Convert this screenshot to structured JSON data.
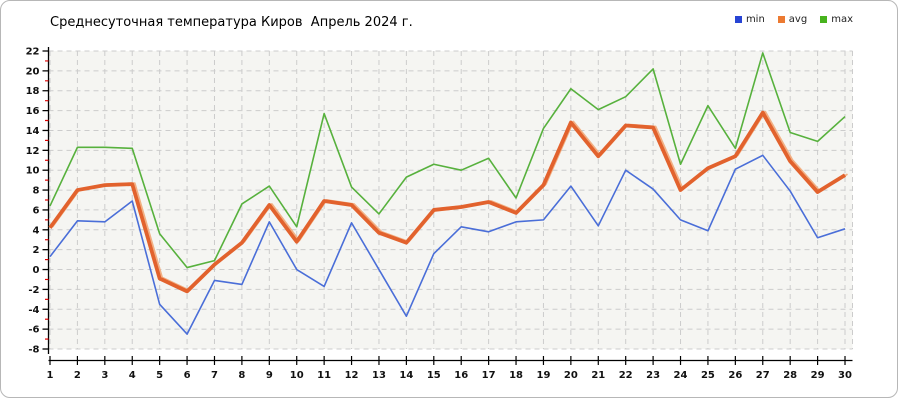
{
  "header": {
    "title": "Среднесуточная температура Киров  Апрель 2024 г."
  },
  "chart_data": {
    "type": "line",
    "title": "Среднесуточная температура Киров  Апрель 2024 г.",
    "xlabel": "",
    "ylabel": "",
    "x": [
      1,
      2,
      3,
      4,
      5,
      6,
      7,
      8,
      9,
      10,
      11,
      12,
      13,
      14,
      15,
      16,
      17,
      18,
      19,
      20,
      21,
      22,
      23,
      24,
      25,
      26,
      27,
      28,
      29,
      30
    ],
    "ylim": [
      -8,
      22
    ],
    "ytick_step": 2,
    "y_ticks": [
      22,
      20,
      18,
      16,
      14,
      12,
      10,
      8,
      6,
      4,
      2,
      0,
      -2,
      -4,
      -6,
      -8
    ],
    "grid": true,
    "grid_color": "#cccccc",
    "plot_bg": "#f5f5f2",
    "axis_color": "#000000",
    "minor_tick_color": "#dd0000",
    "legend_position": "top-right",
    "series": [
      {
        "name": "min",
        "swatch_color": "#2744d4",
        "line_color": "#4a6ed8",
        "line_width": 1.6,
        "values": [
          1.3,
          4.9,
          4.8,
          6.9,
          -3.5,
          -6.5,
          -1.1,
          -1.5,
          4.8,
          0.0,
          -1.7,
          4.7,
          0.0,
          -4.7,
          1.6,
          4.3,
          3.8,
          4.8,
          5.0,
          8.4,
          4.4,
          10.0,
          8.1,
          5.0,
          3.9,
          10.1,
          11.5,
          7.9,
          3.2,
          4.1
        ]
      },
      {
        "name": "avg",
        "swatch_color": "#ec7a31",
        "line_color": "#e2622d",
        "shadow_color": "#f2b084",
        "line_width": 3.8,
        "values": [
          4.2,
          8.0,
          8.5,
          8.6,
          -0.9,
          -2.2,
          0.5,
          2.7,
          6.5,
          2.8,
          6.9,
          6.5,
          3.7,
          2.7,
          6.0,
          6.3,
          6.8,
          5.7,
          8.5,
          14.8,
          11.4,
          14.5,
          14.3,
          8.0,
          10.2,
          11.4,
          15.8,
          10.9,
          7.8,
          9.5
        ]
      },
      {
        "name": "max",
        "swatch_color": "#48b31e",
        "line_color": "#57b13d",
        "line_width": 1.6,
        "values": [
          6.4,
          12.3,
          12.3,
          12.2,
          3.6,
          0.2,
          0.9,
          6.6,
          8.4,
          4.3,
          15.7,
          8.3,
          5.6,
          9.3,
          10.6,
          10.0,
          11.2,
          7.2,
          14.2,
          18.2,
          16.1,
          17.4,
          20.2,
          10.6,
          16.5,
          12.2,
          21.8,
          13.8,
          12.9,
          15.4
        ]
      }
    ]
  }
}
